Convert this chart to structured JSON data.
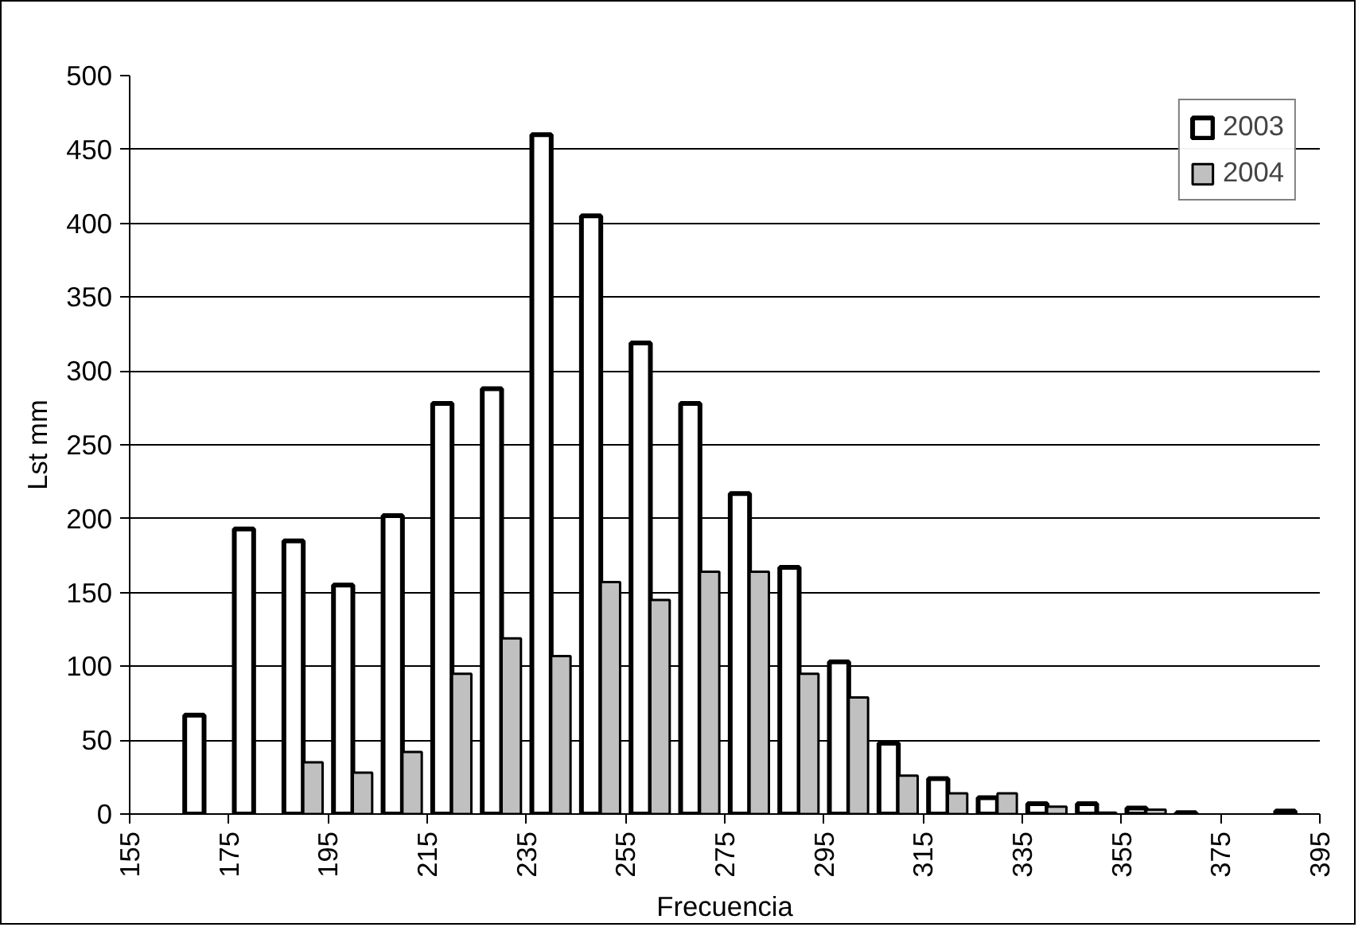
{
  "chart_data": {
    "type": "bar",
    "xlabel": "Frecuencia",
    "ylabel": "Lst mm",
    "x": [
      170,
      180,
      190,
      200,
      210,
      220,
      230,
      240,
      250,
      260,
      270,
      280,
      290,
      300,
      310,
      320,
      330,
      340,
      350,
      360,
      370,
      380,
      390
    ],
    "series": [
      {
        "name": "2003",
        "color": "#ffffff",
        "values": [
          67,
          193,
          185,
          155,
          202,
          278,
          288,
          460,
          405,
          319,
          278,
          217,
          167,
          103,
          48,
          24,
          11,
          7,
          7,
          4,
          1,
          null,
          2
        ]
      },
      {
        "name": "2004",
        "color": "#c0c0c0",
        "values": [
          null,
          null,
          35,
          28,
          42,
          95,
          119,
          107,
          157,
          145,
          164,
          164,
          95,
          79,
          26,
          14,
          14,
          5,
          1,
          3,
          null,
          null,
          null
        ]
      }
    ],
    "xlim": [
      155,
      395
    ],
    "xticks": [
      155,
      175,
      195,
      215,
      235,
      255,
      275,
      295,
      315,
      335,
      355,
      375,
      395
    ],
    "ylim": [
      0,
      500
    ],
    "yticks": [
      0,
      50,
      100,
      150,
      200,
      250,
      300,
      350,
      400,
      450,
      500
    ],
    "grid": "y",
    "legend": "top right"
  }
}
